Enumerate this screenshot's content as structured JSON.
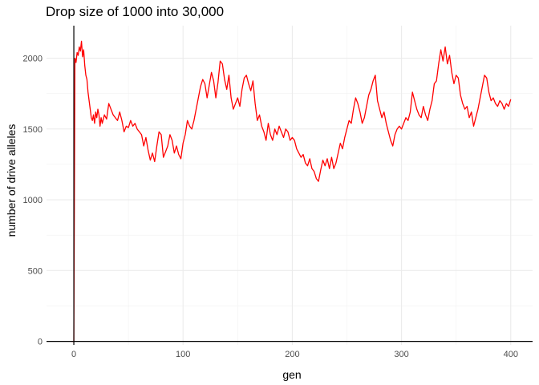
{
  "chart_data": {
    "type": "line",
    "title": "Drop size of 1000 into 30,000",
    "xlabel": "gen",
    "ylabel": "number of drive alleles",
    "xlim": [
      -25,
      420
    ],
    "ylim": [
      -25,
      2230
    ],
    "xticks": [
      0,
      100,
      200,
      300,
      400
    ],
    "yticks": [
      0,
      500,
      1000,
      1500,
      2000
    ],
    "grid": true,
    "legend": "none",
    "reference_lines": {
      "vertical_x": 0,
      "horizontal_y": 0
    },
    "series": [
      {
        "color": "#ff0000",
        "points": [
          [
            -2,
            0
          ],
          [
            -1,
            0
          ],
          [
            0,
            0
          ],
          [
            1,
            2000
          ],
          [
            2,
            1970
          ],
          [
            3,
            2040
          ],
          [
            4,
            2020
          ],
          [
            5,
            2080
          ],
          [
            6,
            2050
          ],
          [
            7,
            2120
          ],
          [
            8,
            2010
          ],
          [
            9,
            2060
          ],
          [
            10,
            1950
          ],
          [
            11,
            1880
          ],
          [
            12,
            1850
          ],
          [
            13,
            1760
          ],
          [
            14,
            1700
          ],
          [
            15,
            1640
          ],
          [
            16,
            1580
          ],
          [
            17,
            1560
          ],
          [
            18,
            1600
          ],
          [
            19,
            1540
          ],
          [
            20,
            1620
          ],
          [
            21,
            1580
          ],
          [
            22,
            1640
          ],
          [
            23,
            1600
          ],
          [
            24,
            1520
          ],
          [
            25,
            1580
          ],
          [
            26,
            1540
          ],
          [
            28,
            1600
          ],
          [
            30,
            1570
          ],
          [
            32,
            1680
          ],
          [
            34,
            1640
          ],
          [
            36,
            1600
          ],
          [
            38,
            1580
          ],
          [
            40,
            1560
          ],
          [
            42,
            1620
          ],
          [
            44,
            1560
          ],
          [
            46,
            1480
          ],
          [
            48,
            1520
          ],
          [
            50,
            1510
          ],
          [
            52,
            1560
          ],
          [
            54,
            1520
          ],
          [
            56,
            1540
          ],
          [
            58,
            1500
          ],
          [
            60,
            1480
          ],
          [
            62,
            1460
          ],
          [
            64,
            1380
          ],
          [
            66,
            1440
          ],
          [
            68,
            1350
          ],
          [
            70,
            1280
          ],
          [
            72,
            1330
          ],
          [
            74,
            1270
          ],
          [
            76,
            1380
          ],
          [
            78,
            1480
          ],
          [
            80,
            1460
          ],
          [
            82,
            1300
          ],
          [
            84,
            1340
          ],
          [
            86,
            1380
          ],
          [
            88,
            1460
          ],
          [
            90,
            1420
          ],
          [
            92,
            1330
          ],
          [
            94,
            1380
          ],
          [
            96,
            1320
          ],
          [
            98,
            1290
          ],
          [
            100,
            1400
          ],
          [
            102,
            1460
          ],
          [
            104,
            1560
          ],
          [
            106,
            1520
          ],
          [
            108,
            1500
          ],
          [
            110,
            1560
          ],
          [
            112,
            1640
          ],
          [
            114,
            1720
          ],
          [
            116,
            1800
          ],
          [
            118,
            1850
          ],
          [
            120,
            1820
          ],
          [
            122,
            1720
          ],
          [
            124,
            1810
          ],
          [
            126,
            1900
          ],
          [
            128,
            1840
          ],
          [
            130,
            1720
          ],
          [
            132,
            1830
          ],
          [
            134,
            1980
          ],
          [
            136,
            1960
          ],
          [
            138,
            1850
          ],
          [
            140,
            1780
          ],
          [
            142,
            1880
          ],
          [
            144,
            1720
          ],
          [
            146,
            1640
          ],
          [
            148,
            1680
          ],
          [
            150,
            1720
          ],
          [
            152,
            1660
          ],
          [
            154,
            1780
          ],
          [
            156,
            1860
          ],
          [
            158,
            1880
          ],
          [
            160,
            1820
          ],
          [
            162,
            1770
          ],
          [
            164,
            1840
          ],
          [
            166,
            1680
          ],
          [
            168,
            1560
          ],
          [
            170,
            1600
          ],
          [
            172,
            1520
          ],
          [
            174,
            1480
          ],
          [
            176,
            1420
          ],
          [
            178,
            1540
          ],
          [
            180,
            1460
          ],
          [
            182,
            1420
          ],
          [
            184,
            1500
          ],
          [
            186,
            1460
          ],
          [
            188,
            1520
          ],
          [
            190,
            1480
          ],
          [
            192,
            1440
          ],
          [
            194,
            1500
          ],
          [
            196,
            1480
          ],
          [
            198,
            1420
          ],
          [
            200,
            1440
          ],
          [
            202,
            1420
          ],
          [
            204,
            1360
          ],
          [
            206,
            1330
          ],
          [
            208,
            1300
          ],
          [
            210,
            1320
          ],
          [
            212,
            1260
          ],
          [
            214,
            1240
          ],
          [
            216,
            1290
          ],
          [
            218,
            1220
          ],
          [
            220,
            1200
          ],
          [
            222,
            1150
          ],
          [
            224,
            1130
          ],
          [
            226,
            1210
          ],
          [
            228,
            1280
          ],
          [
            230,
            1240
          ],
          [
            232,
            1290
          ],
          [
            234,
            1220
          ],
          [
            236,
            1300
          ],
          [
            238,
            1220
          ],
          [
            240,
            1260
          ],
          [
            242,
            1330
          ],
          [
            244,
            1400
          ],
          [
            246,
            1360
          ],
          [
            248,
            1440
          ],
          [
            250,
            1500
          ],
          [
            252,
            1560
          ],
          [
            254,
            1540
          ],
          [
            256,
            1640
          ],
          [
            258,
            1720
          ],
          [
            260,
            1680
          ],
          [
            262,
            1620
          ],
          [
            264,
            1540
          ],
          [
            266,
            1580
          ],
          [
            268,
            1660
          ],
          [
            270,
            1740
          ],
          [
            272,
            1780
          ],
          [
            274,
            1840
          ],
          [
            276,
            1880
          ],
          [
            278,
            1700
          ],
          [
            280,
            1640
          ],
          [
            282,
            1580
          ],
          [
            284,
            1620
          ],
          [
            286,
            1540
          ],
          [
            288,
            1480
          ],
          [
            290,
            1420
          ],
          [
            292,
            1380
          ],
          [
            294,
            1460
          ],
          [
            296,
            1500
          ],
          [
            298,
            1520
          ],
          [
            300,
            1500
          ],
          [
            302,
            1540
          ],
          [
            304,
            1580
          ],
          [
            306,
            1560
          ],
          [
            308,
            1620
          ],
          [
            310,
            1760
          ],
          [
            312,
            1700
          ],
          [
            314,
            1640
          ],
          [
            316,
            1600
          ],
          [
            318,
            1580
          ],
          [
            320,
            1660
          ],
          [
            322,
            1600
          ],
          [
            324,
            1560
          ],
          [
            326,
            1640
          ],
          [
            328,
            1700
          ],
          [
            330,
            1820
          ],
          [
            332,
            1840
          ],
          [
            334,
            1960
          ],
          [
            336,
            2060
          ],
          [
            338,
            1980
          ],
          [
            340,
            2080
          ],
          [
            342,
            1960
          ],
          [
            344,
            2020
          ],
          [
            346,
            1900
          ],
          [
            348,
            1820
          ],
          [
            350,
            1880
          ],
          [
            352,
            1860
          ],
          [
            354,
            1740
          ],
          [
            356,
            1680
          ],
          [
            358,
            1640
          ],
          [
            360,
            1660
          ],
          [
            362,
            1580
          ],
          [
            364,
            1620
          ],
          [
            366,
            1520
          ],
          [
            368,
            1580
          ],
          [
            370,
            1640
          ],
          [
            372,
            1720
          ],
          [
            374,
            1800
          ],
          [
            376,
            1880
          ],
          [
            378,
            1860
          ],
          [
            380,
            1760
          ],
          [
            382,
            1700
          ],
          [
            384,
            1720
          ],
          [
            386,
            1680
          ],
          [
            388,
            1660
          ],
          [
            390,
            1700
          ],
          [
            392,
            1680
          ],
          [
            394,
            1640
          ],
          [
            396,
            1680
          ],
          [
            398,
            1660
          ],
          [
            400,
            1710
          ]
        ]
      }
    ]
  }
}
